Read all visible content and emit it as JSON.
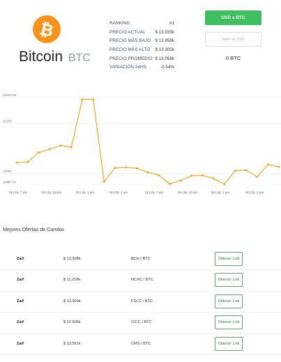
{
  "coin": {
    "name": "Bitcoin",
    "symbol": "BTC",
    "logo_icon": "bitcoin-icon",
    "logo_glyph": "₿",
    "brand_color": "#f7931a"
  },
  "stats": [
    {
      "label": "RANKING",
      "value": "#1"
    },
    {
      "label": "PRECIO ACTUAL",
      "value": "$ 13.035k"
    },
    {
      "label": "PRECIO MÁS BAJO",
      "value": "$ 12.958k"
    },
    {
      "label": "PRECIO MÁS ALTO",
      "value": "$ 13.305k"
    },
    {
      "label": "PRECIO PROMEDIO",
      "value": "$ 13.058k"
    },
    {
      "label": "VARIACIÓN 24HS",
      "value": "-0.54%"
    }
  ],
  "converter": {
    "button_label": "USD a BTC",
    "input_placeholder": "Valor en USD",
    "result": "0 BTC",
    "accent_color": "#3fbf5f"
  },
  "chart_data": {
    "type": "line",
    "color": "#f5a623",
    "y_axis_labels": [
      "13304.56",
      "13200",
      "13000",
      "12957.64"
    ],
    "ylim": [
      12957.64,
      13304.56
    ],
    "grid": true,
    "x_tick_labels": [
      "Oct 24, 7 pm",
      "Oct 24, 10 pm",
      "Oct 25, 1 am",
      "Oct 25, 4 am",
      "Oct 25, 7 am",
      "Oct 25, 10 am",
      "Oct 25, 1 pm",
      "Oct 25, 4 pm"
    ],
    "values": [
      13045,
      13047,
      13085,
      13098,
      13113,
      13106,
      13297,
      13297,
      12969,
      13024,
      13026,
      13022,
      13006,
      12995,
      12960,
      12973,
      12993,
      12994,
      12982,
      12959,
      13013,
      13015,
      12988,
      13037,
      13028
    ]
  },
  "offers": {
    "title": "Mejores Ofertas de Cambio",
    "rows": [
      {
        "exchange": "Zaif",
        "price": "$ 13.508k",
        "pair": "BCH / BTC",
        "action": "Obtener Link"
      },
      {
        "exchange": "Zaif",
        "price": "$ 11.218k",
        "pair": "NCXC / BTC",
        "action": "Obtener Link"
      },
      {
        "exchange": "Zaif",
        "price": "$ 13.509k",
        "pair": "FSCC / BTC",
        "action": "Obtener Link"
      },
      {
        "exchange": "Zaif",
        "price": "$ 12.606k",
        "pair": "CICC / BTC",
        "action": "Obtener Link"
      },
      {
        "exchange": "Zaif",
        "price": "$ 13.561k",
        "pair": "CMS / BTC",
        "action": "Obtener Link"
      }
    ]
  }
}
